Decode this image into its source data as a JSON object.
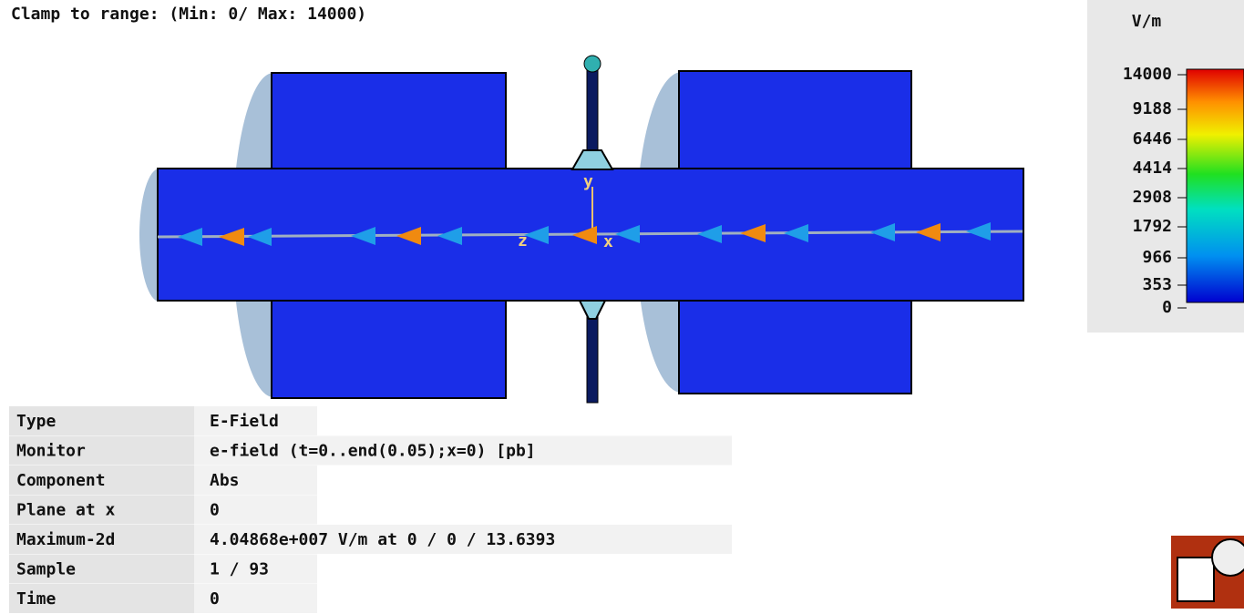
{
  "header": {
    "clamp": "Clamp to range: (Min: 0/ Max: 14000)"
  },
  "legend": {
    "unit": "V/m",
    "labels": [
      "14000",
      "9188",
      "6446",
      "4414",
      "2908",
      "1792",
      "966",
      "353",
      "0"
    ]
  },
  "axes": {
    "y": "y",
    "z": "z",
    "x": "x"
  },
  "info": {
    "rows": [
      [
        "Type",
        "E-Field"
      ],
      [
        "Monitor",
        "e-field (t=0..end(0.05);x=0) [pb]"
      ],
      [
        "Component",
        "Abs"
      ],
      [
        "Plane at x",
        "0"
      ],
      [
        "Maximum-2d",
        "4.04868e+007 V/m at 0 / 0 / 13.6393"
      ],
      [
        "Sample",
        "1 / 93"
      ],
      [
        "Time",
        "0"
      ]
    ]
  }
}
